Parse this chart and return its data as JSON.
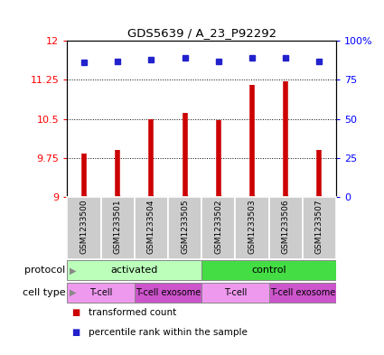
{
  "title": "GDS5639 / A_23_P92292",
  "samples": [
    "GSM1233500",
    "GSM1233501",
    "GSM1233504",
    "GSM1233505",
    "GSM1233502",
    "GSM1233503",
    "GSM1233506",
    "GSM1233507"
  ],
  "transformed_counts": [
    9.83,
    9.9,
    10.5,
    10.62,
    10.48,
    11.15,
    11.22,
    9.9
  ],
  "percentile_ranks": [
    86,
    87,
    88,
    89,
    87,
    89,
    89,
    87
  ],
  "ylim_left": [
    9,
    12
  ],
  "ylim_right": [
    0,
    100
  ],
  "yticks_left": [
    9,
    9.75,
    10.5,
    11.25,
    12
  ],
  "yticks_right": [
    0,
    25,
    50,
    75,
    100
  ],
  "ytick_labels_left": [
    "9",
    "9.75",
    "10.5",
    "11.25",
    "12"
  ],
  "ytick_labels_right": [
    "0",
    "25",
    "50",
    "75",
    "100%"
  ],
  "bar_color": "#cc0000",
  "dot_color": "#2222cc",
  "bar_bottom": 9,
  "protocol_groups": [
    {
      "label": "activated",
      "start": 0,
      "end": 4,
      "color": "#bbffbb"
    },
    {
      "label": "control",
      "start": 4,
      "end": 8,
      "color": "#44dd44"
    }
  ],
  "cell_type_groups": [
    {
      "label": "T-cell",
      "start": 0,
      "end": 2,
      "color": "#ee99ee"
    },
    {
      "label": "T-cell exosome",
      "start": 2,
      "end": 4,
      "color": "#cc55cc"
    },
    {
      "label": "T-cell",
      "start": 4,
      "end": 6,
      "color": "#ee99ee"
    },
    {
      "label": "T-cell exosome",
      "start": 6,
      "end": 8,
      "color": "#cc55cc"
    }
  ],
  "legend_items": [
    {
      "label": "transformed count",
      "color": "#cc0000"
    },
    {
      "label": "percentile rank within the sample",
      "color": "#2222cc"
    }
  ],
  "background_color": "#ffffff",
  "plot_bg_color": "#ffffff",
  "sample_bg_color": "#cccccc",
  "sample_divider_color": "#ffffff"
}
